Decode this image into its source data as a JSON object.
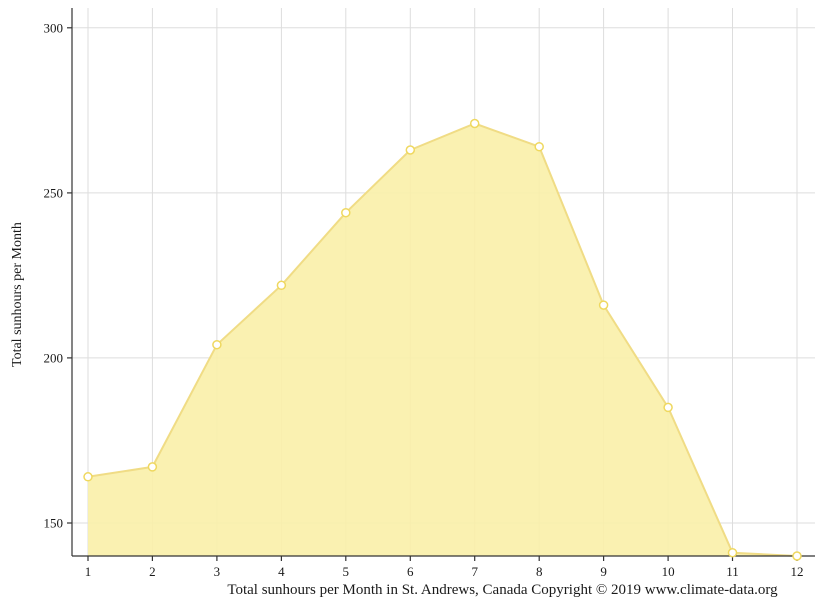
{
  "chart_data": {
    "type": "area",
    "series_name": "Total sunhours",
    "x": [
      1,
      2,
      3,
      4,
      5,
      6,
      7,
      8,
      9,
      10,
      11,
      12
    ],
    "values": [
      164,
      167,
      204,
      222,
      244,
      263,
      271,
      264,
      216,
      185,
      141,
      140
    ],
    "xticks": [
      "1",
      "2",
      "3",
      "4",
      "5",
      "6",
      "7",
      "8",
      "9",
      "10",
      "11",
      "12"
    ],
    "yticks": [
      150,
      200,
      250,
      300
    ],
    "ylim": [
      140,
      306
    ],
    "title": "Total sunhours per Month in St. Andrews, Canada Copyright © 2019 www.climate-data.org",
    "xlabel": "",
    "ylabel": "Total sunhours per Month",
    "grid": true,
    "legend": false,
    "colors": {
      "fill": "#FAF0A8",
      "line": "#F0DC85",
      "marker_fill": "#FFFFFF",
      "marker_stroke": "#EFD85F",
      "grid": "#DDDDDD",
      "axis": "#333333",
      "text": "#1A1A1A"
    }
  }
}
